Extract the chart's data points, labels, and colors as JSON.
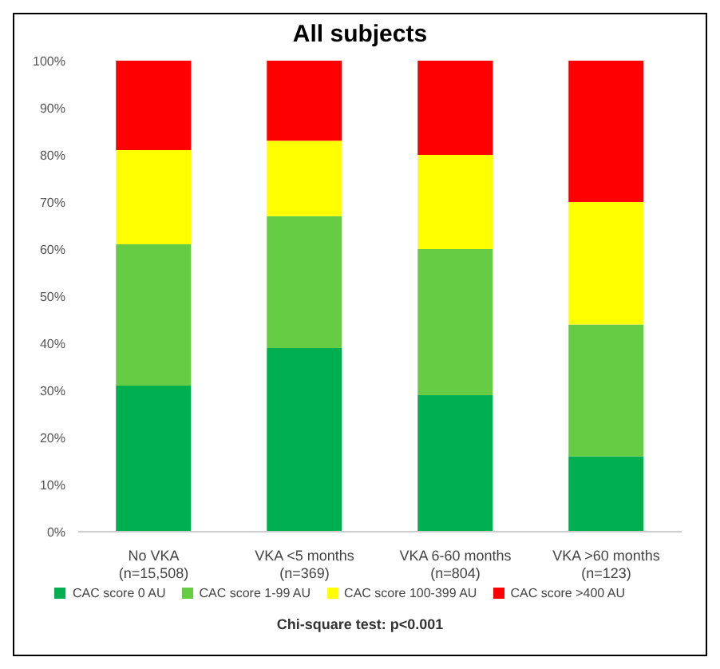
{
  "chart_data": {
    "type": "bar",
    "title": "All subjects",
    "stacked": true,
    "categories": [
      "No VKA (n=15,508)",
      "VKA <5 months (n=369)",
      "VKA 6-60 months (n=804)",
      "VKA >60 months (n=123)"
    ],
    "series": [
      {
        "name": "CAC score 0 AU",
        "color": "#00b050",
        "values": [
          31,
          39,
          29,
          16
        ]
      },
      {
        "name": "CAC score 1-99 AU",
        "color": "#66cc44",
        "values": [
          30,
          28,
          31,
          28
        ]
      },
      {
        "name": "CAC score 100-399 AU",
        "color": "#ffff00",
        "values": [
          20,
          16,
          20,
          26
        ]
      },
      {
        "name": "CAC score >400 AU",
        "color": "#ff0000",
        "values": [
          19,
          17,
          20,
          30
        ]
      }
    ],
    "ylim": [
      0,
      100
    ],
    "yticks": [
      {
        "value": 0,
        "label": "0%"
      },
      {
        "value": 10,
        "label": "10%"
      },
      {
        "value": 20,
        "label": "20%"
      },
      {
        "value": 30,
        "label": "30%"
      },
      {
        "value": 40,
        "label": "40%"
      },
      {
        "value": 50,
        "label": "50%"
      },
      {
        "value": 60,
        "label": "60%"
      },
      {
        "value": 70,
        "label": "70%"
      },
      {
        "value": 80,
        "label": "80%"
      },
      {
        "value": 90,
        "label": "90%"
      },
      {
        "value": 100,
        "label": "100%"
      }
    ],
    "grid": false,
    "legend": "bottom",
    "annotations": [
      "Chi-square test: p<0.001"
    ]
  }
}
